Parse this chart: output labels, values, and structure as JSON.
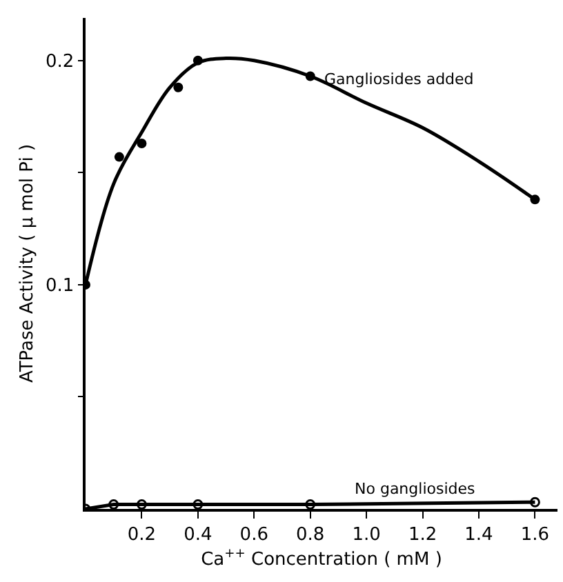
{
  "chart_data": {
    "type": "scatter",
    "xlabel": "Ca$^{++}$ Concentration ( mM )",
    "ylabel": "ATPase Activity ( μ mol Pi )",
    "xlim": [
      0,
      1.68
    ],
    "ylim": [
      0,
      0.219
    ],
    "xticks": [
      0.2,
      0.4,
      0.6,
      0.8,
      {
        "value": 1.0,
        "label": "1.0"
      },
      1.2,
      1.4,
      1.6
    ],
    "yticks": [
      {
        "value": 0.05,
        "label": null
      },
      0.1,
      {
        "value": 0.15,
        "label": null
      },
      0.2
    ],
    "grid": false,
    "legend": false,
    "marker": "circle",
    "series": [
      {
        "name": "Gangliosides added",
        "color": "#000000",
        "x": [
          0,
          0.12,
          0.2,
          0.33,
          0.4,
          0.8,
          1.6
        ],
        "values": [
          0.1,
          0.157,
          0.163,
          0.188,
          0.2,
          0.193,
          0.138
        ]
      },
      {
        "type": "line",
        "marker": "none",
        "color": "#000000",
        "x": [
          0,
          0.1,
          0.2,
          0.3,
          0.4,
          0.5,
          0.6,
          0.8,
          1.0,
          1.2,
          1.4,
          1.6
        ],
        "values": [
          0.1,
          0.145,
          0.168,
          0.188,
          0.199,
          0.201,
          0.2,
          0.193,
          0.181,
          0.17,
          0.155,
          0.138
        ]
      },
      {
        "name": "No gangliosides",
        "type": "line",
        "color": "#000000",
        "x": [
          0,
          0.1,
          0.2,
          0.4,
          0.8,
          1.6
        ],
        "values": [
          0,
          0.002,
          0.002,
          0.002,
          0.002,
          0.003
        ]
      }
    ]
  }
}
